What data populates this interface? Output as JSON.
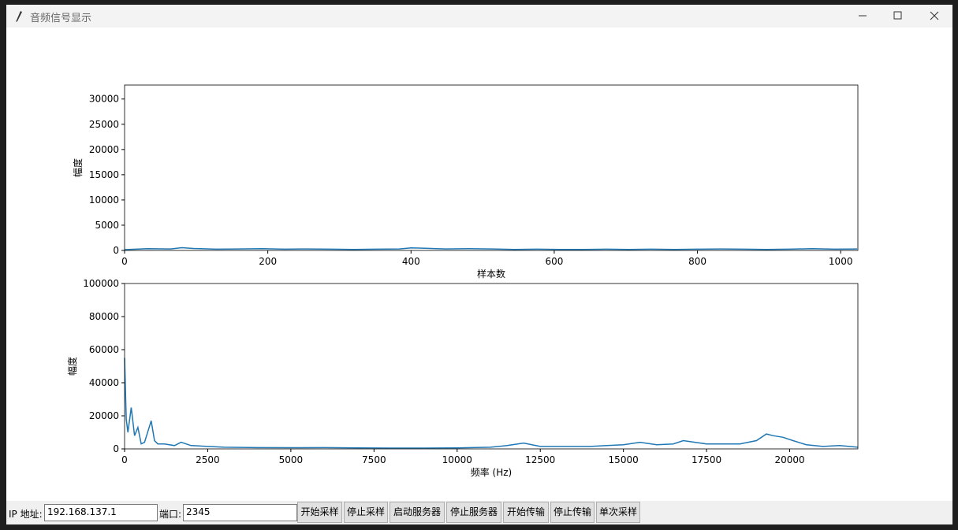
{
  "window": {
    "title": "音频信号显示"
  },
  "chart_data": [
    {
      "type": "line",
      "ylabel": "幅度",
      "xlabel": "样本数",
      "xlim": [
        0,
        1024
      ],
      "ylim": [
        0,
        32768
      ],
      "xticks": [
        0,
        200,
        400,
        600,
        800,
        1000
      ],
      "yticks": [
        0,
        5000,
        10000,
        15000,
        20000,
        25000,
        30000
      ],
      "series": [
        {
          "color": "#1f77b4",
          "x": [
            0,
            32,
            64,
            80,
            96,
            128,
            160,
            192,
            224,
            256,
            288,
            320,
            352,
            384,
            400,
            416,
            448,
            480,
            512,
            544,
            576,
            608,
            640,
            672,
            704,
            736,
            768,
            800,
            832,
            864,
            896,
            928,
            960,
            992,
            1023
          ],
          "values": [
            150,
            350,
            300,
            550,
            400,
            250,
            300,
            350,
            250,
            300,
            250,
            200,
            250,
            300,
            500,
            450,
            300,
            350,
            300,
            200,
            250,
            200,
            200,
            250,
            200,
            250,
            200,
            250,
            300,
            250,
            200,
            250,
            350,
            250,
            300
          ]
        }
      ]
    },
    {
      "type": "line",
      "ylabel": "幅度",
      "xlabel": "频率 (Hz)",
      "xlim": [
        0,
        22050
      ],
      "ylim": [
        0,
        100000
      ],
      "xticks": [
        0,
        2500,
        5000,
        7500,
        10000,
        12500,
        15000,
        17500,
        20000
      ],
      "yticks": [
        0,
        20000,
        40000,
        60000,
        80000,
        100000
      ],
      "series": [
        {
          "color": "#1f77b4",
          "x": [
            0,
            50,
            100,
            200,
            300,
            400,
            500,
            600,
            800,
            900,
            1000,
            1200,
            1500,
            1700,
            2000,
            2500,
            3000,
            4000,
            5000,
            6000,
            7000,
            8000,
            9000,
            10000,
            11000,
            11500,
            12000,
            12500,
            13000,
            14000,
            15000,
            15500,
            16000,
            16500,
            16800,
            17500,
            18000,
            18500,
            19000,
            19300,
            19500,
            19800,
            20100,
            20500,
            21000,
            21500,
            22050
          ],
          "values": [
            55000,
            18000,
            10000,
            25000,
            8000,
            13000,
            3000,
            4000,
            17000,
            5000,
            3000,
            3000,
            2000,
            4000,
            2000,
            1500,
            1000,
            800,
            700,
            800,
            600,
            500,
            500,
            600,
            1000,
            2000,
            3500,
            1500,
            1500,
            1500,
            2500,
            4000,
            2500,
            3000,
            5000,
            3000,
            3000,
            3000,
            5000,
            9000,
            8000,
            7000,
            5000,
            2500,
            1500,
            2000,
            1000
          ]
        }
      ]
    }
  ],
  "controls": {
    "ip_label": "IP 地址:",
    "ip_value": "192.168.137.1",
    "port_label": "端口:",
    "port_value": "2345",
    "buttons": [
      "开始采样",
      "停止采样",
      "启动服务器",
      "停止服务器",
      "开始传输",
      "停止传输",
      "单次采样"
    ]
  }
}
